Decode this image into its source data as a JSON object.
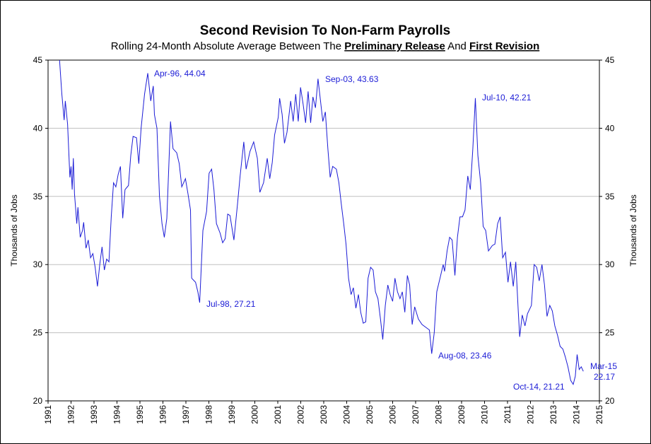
{
  "chart_data": {
    "type": "line",
    "title": "Second Revision To Non-Farm Payrolls",
    "subtitle": [
      {
        "text": "Rolling 24-Month Absolute Average Between The ",
        "bold": false
      },
      {
        "text": "Preliminary Release",
        "bold": true
      },
      {
        "text": " And ",
        "bold": false
      },
      {
        "text": "First Revision",
        "bold": true
      }
    ],
    "y_label": "Thousands of Jobs",
    "y2_label": "Thousands of Jobs",
    "xlim": [
      1991,
      2015
    ],
    "xticks": [
      1991,
      1992,
      1993,
      1994,
      1995,
      1996,
      1997,
      1998,
      1999,
      2000,
      2001,
      2002,
      2003,
      2004,
      2005,
      2006,
      2007,
      2008,
      2009,
      2010,
      2011,
      2012,
      2013,
      2014,
      2015
    ],
    "ylim": [
      20,
      45
    ],
    "yticks": [
      20,
      25,
      30,
      35,
      40,
      45
    ],
    "y2lim": [
      20,
      45
    ],
    "y2ticks": [
      20,
      25,
      30,
      35,
      40,
      45
    ],
    "grid": true,
    "x": [
      1991.5,
      1991.6,
      1991.7,
      1991.75,
      1991.85,
      1991.95,
      1992,
      1992.05,
      1992.1,
      1992.15,
      1992.25,
      1992.3,
      1992.4,
      1992.5,
      1992.55,
      1992.65,
      1992.75,
      1992.85,
      1992.95,
      1993.05,
      1993.15,
      1993.25,
      1993.35,
      1993.45,
      1993.55,
      1993.65,
      1993.75,
      1993.85,
      1993.95,
      1994.05,
      1994.15,
      1994.25,
      1994.35,
      1994.5,
      1994.6,
      1994.7,
      1994.85,
      1994.95,
      1995.05,
      1995.2,
      1995.34,
      1995.47,
      1995.58,
      1995.63,
      1995.74,
      1995.85,
      1995.96,
      1996.06,
      1996.17,
      1996.33,
      1996.44,
      1996.6,
      1996.71,
      1996.82,
      1996.98,
      1997.09,
      1997.2,
      1997.25,
      1997.42,
      1997.52,
      1997.6,
      1997.74,
      1997.9,
      1998.01,
      1998.12,
      1998.22,
      1998.33,
      1998.49,
      1998.6,
      1998.71,
      1998.82,
      1998.92,
      1999.09,
      1999.25,
      1999.36,
      1999.52,
      1999.62,
      1999.79,
      1999.95,
      2000.11,
      2000.22,
      2000.38,
      2000.54,
      2000.65,
      2000.76,
      2000.86,
      2001.02,
      2001.08,
      2001.19,
      2001.29,
      2001.4,
      2001.56,
      2001.67,
      2001.78,
      2001.89,
      2001.99,
      2002.1,
      2002.21,
      2002.32,
      2002.43,
      2002.53,
      2002.64,
      2002.75,
      2002.86,
      2002.96,
      2003.07,
      2003.18,
      2003.28,
      2003.39,
      2003.55,
      2003.66,
      2003.76,
      2003.87,
      2003.97,
      2004.08,
      2004.19,
      2004.29,
      2004.4,
      2004.51,
      2004.61,
      2004.72,
      2004.83,
      2004.93,
      2005.04,
      2005.15,
      2005.25,
      2005.36,
      2005.47,
      2005.57,
      2005.68,
      2005.79,
      2005.89,
      2006.0,
      2006.1,
      2006.21,
      2006.32,
      2006.42,
      2006.53,
      2006.64,
      2006.74,
      2006.85,
      2006.96,
      2007.12,
      2007.28,
      2007.44,
      2007.6,
      2007.7,
      2007.81,
      2007.92,
      2008.09,
      2008.2,
      2008.26,
      2008.37,
      2008.48,
      2008.59,
      2008.71,
      2008.82,
      2008.93,
      2009.04,
      2009.15,
      2009.27,
      2009.38,
      2009.49,
      2009.6,
      2009.71,
      2009.83,
      2009.94,
      2010.05,
      2010.17,
      2010.34,
      2010.45,
      2010.57,
      2010.68,
      2010.79,
      2010.91,
      2011.02,
      2011.13,
      2011.25,
      2011.36,
      2011.47,
      2011.53,
      2011.64,
      2011.76,
      2011.87,
      2012.04,
      2012.16,
      2012.27,
      2012.38,
      2012.5,
      2012.61,
      2012.72,
      2012.84,
      2012.95,
      2013.06,
      2013.18,
      2013.29,
      2013.41,
      2013.52,
      2013.63,
      2013.75,
      2013.86,
      2013.95,
      2014.03,
      2014.12,
      2014.21,
      2014.3
    ],
    "series": [
      {
        "name": "Second Revision",
        "color": "#1c1cd6",
        "values": [
          45,
          42.5,
          40.6,
          42,
          40.3,
          36.4,
          37.2,
          35.5,
          37.8,
          35.2,
          33,
          34.2,
          32,
          32.5,
          33.1,
          31.2,
          31.8,
          30.5,
          30.8,
          29.8,
          28.4,
          30,
          31.3,
          29.6,
          30.4,
          30.2,
          33.5,
          36,
          35.7,
          36.6,
          37.2,
          33.4,
          35.5,
          35.8,
          38,
          39.4,
          39.3,
          37.4,
          40,
          42.5,
          44.04,
          42,
          43.1,
          41,
          40,
          35,
          33,
          32,
          33.4,
          40.5,
          38.5,
          38.2,
          37.4,
          35.7,
          36.3,
          35.2,
          34,
          29,
          28.7,
          28,
          27.21,
          32.5,
          33.9,
          36.7,
          37,
          35.5,
          33,
          32.3,
          31.6,
          31.9,
          33.7,
          33.6,
          31.8,
          34.5,
          36.5,
          39,
          37,
          38.3,
          39,
          37.8,
          35.3,
          36,
          37.8,
          36.3,
          37.5,
          39.5,
          40.8,
          42.2,
          41,
          38.9,
          39.7,
          42,
          40.5,
          42.5,
          40.5,
          43,
          41.8,
          40.4,
          42.7,
          40.4,
          42.3,
          41.5,
          43.63,
          42,
          40.5,
          41.2,
          38.5,
          36.4,
          37.2,
          37,
          36,
          34.5,
          33,
          31.5,
          29,
          27.8,
          28.3,
          26.8,
          27.8,
          26.5,
          25.7,
          25.8,
          29,
          29.8,
          29.6,
          28,
          27.5,
          26,
          24.5,
          27,
          28.5,
          27.8,
          27.3,
          29,
          28,
          27.5,
          28,
          26.5,
          29.2,
          28.5,
          25.6,
          26.9,
          26,
          25.6,
          25.4,
          25.2,
          23.46,
          25,
          28,
          29.2,
          30,
          29.5,
          31,
          32,
          31.8,
          29.2,
          32,
          33.5,
          33.5,
          34,
          36.5,
          35.5,
          38.5,
          42.21,
          38,
          36,
          32.8,
          32.5,
          31,
          31.4,
          31.5,
          33,
          33.5,
          30.5,
          30.9,
          28.7,
          30.2,
          28.4,
          30.2,
          26.5,
          24.7,
          26.3,
          25.5,
          26.4,
          27,
          30,
          29.8,
          28.8,
          30,
          28.5,
          26.2,
          27,
          26.6,
          25.5,
          24.8,
          24,
          23.8,
          23.2,
          22.5,
          21.5,
          21.21,
          21.8,
          23.4,
          22.3,
          22.5,
          22.17
        ]
      }
    ],
    "annotations": [
      "Apr-96, 44.04",
      "Sep-03, 43.63",
      "Jul-10, 42.21",
      "Jul-98, 27.21",
      "Aug-08, 23.46",
      "Oct-14, 21.21",
      "Mar-15",
      "22.17"
    ]
  }
}
